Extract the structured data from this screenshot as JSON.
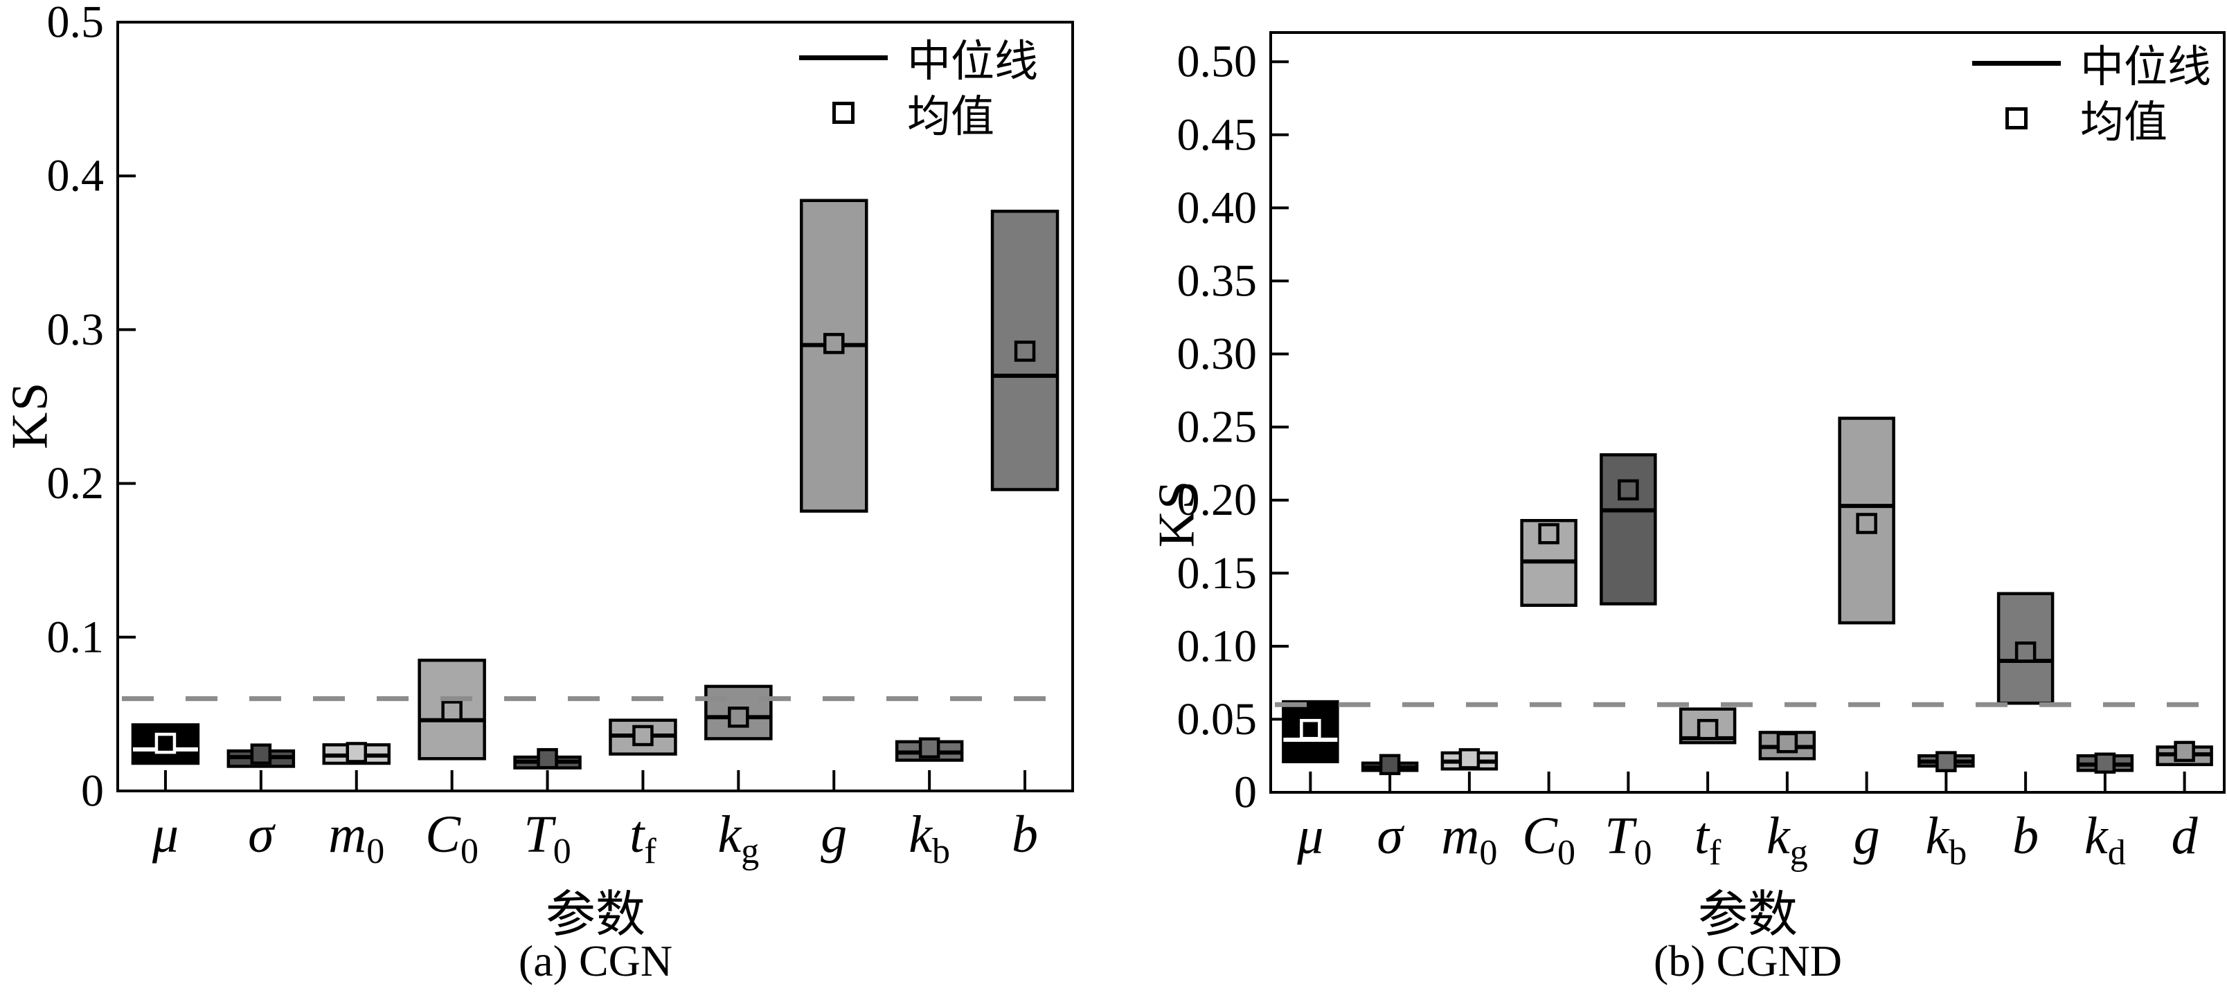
{
  "figure": {
    "y_axis_label": "KS",
    "x_axis_label": "参数",
    "legend": {
      "median_label": "中位线",
      "mean_label": "均值"
    },
    "panel_a_caption": "(a) CGN",
    "panel_b_caption": "(b) CGND"
  },
  "chart_data": [
    {
      "type": "box",
      "title": "(a) CGN",
      "xlabel": "参数",
      "ylabel": "KS",
      "ylim": [
        0,
        0.5
      ],
      "grid": false,
      "legend_position": "top-right-inside",
      "ytick_labels": [
        "0",
        "0.1",
        "0.2",
        "0.3",
        "0.4",
        "0.5"
      ],
      "ytick_values": [
        0,
        0.1,
        0.2,
        0.3,
        0.4,
        0.5
      ],
      "threshold_line": {
        "value": 0.06,
        "style": "dashed",
        "color": "#8c8c8c"
      },
      "categories": [
        {
          "main": "μ",
          "sub": ""
        },
        {
          "main": "σ",
          "sub": ""
        },
        {
          "main": "m",
          "sub": "0"
        },
        {
          "main": "C",
          "sub": "0"
        },
        {
          "main": "T",
          "sub": "0"
        },
        {
          "main": "t",
          "sub": "f"
        },
        {
          "main": "k",
          "sub": "g"
        },
        {
          "main": "g",
          "sub": ""
        },
        {
          "main": "k",
          "sub": "b"
        },
        {
          "main": "b",
          "sub": ""
        }
      ],
      "boxes": [
        {
          "category": "mu",
          "q1": 0.018,
          "median": 0.027,
          "q3": 0.043,
          "mean": 0.031,
          "fill": "#000000",
          "accent": "#ffffff"
        },
        {
          "category": "sigma",
          "q1": 0.016,
          "median": 0.022,
          "q3": 0.026,
          "mean": 0.024,
          "fill": "#4f4f4f",
          "accent": "#000000"
        },
        {
          "category": "m0",
          "q1": 0.018,
          "median": 0.023,
          "q3": 0.03,
          "mean": 0.025,
          "fill": "#c9c9c9",
          "accent": "#000000"
        },
        {
          "category": "C0",
          "q1": 0.021,
          "median": 0.046,
          "q3": 0.085,
          "mean": 0.052,
          "fill": "#a8a8a8",
          "accent": "#000000"
        },
        {
          "category": "T0",
          "q1": 0.015,
          "median": 0.019,
          "q3": 0.022,
          "mean": 0.021,
          "fill": "#575757",
          "accent": "#000000"
        },
        {
          "category": "tf",
          "q1": 0.024,
          "median": 0.036,
          "q3": 0.046,
          "mean": 0.036,
          "fill": "#a9a9a9",
          "accent": "#000000"
        },
        {
          "category": "kg",
          "q1": 0.034,
          "median": 0.048,
          "q3": 0.068,
          "mean": 0.048,
          "fill": "#8f8f8f",
          "accent": "#000000"
        },
        {
          "category": "g",
          "q1": 0.182,
          "median": 0.29,
          "q3": 0.384,
          "mean": 0.291,
          "fill": "#9c9c9c",
          "accent": "#000000"
        },
        {
          "category": "kb",
          "q1": 0.02,
          "median": 0.025,
          "q3": 0.032,
          "mean": 0.028,
          "fill": "#707070",
          "accent": "#000000"
        },
        {
          "category": "b",
          "q1": 0.196,
          "median": 0.27,
          "q3": 0.377,
          "mean": 0.286,
          "fill": "#7b7b7b",
          "accent": "#000000"
        }
      ]
    },
    {
      "type": "box",
      "title": "(b) CGND",
      "xlabel": "参数",
      "ylabel": "KS",
      "ylim": [
        0,
        0.52
      ],
      "grid": false,
      "legend_position": "top-right-inside",
      "ytick_labels": [
        "0",
        "0.05",
        "0.10",
        "0.15",
        "0.20",
        "0.25",
        "0.30",
        "0.35",
        "0.40",
        "0.45",
        "0.50"
      ],
      "ytick_values": [
        0,
        0.05,
        0.1,
        0.15,
        0.2,
        0.25,
        0.3,
        0.35,
        0.4,
        0.45,
        0.5
      ],
      "threshold_line": {
        "value": 0.06,
        "style": "dashed",
        "color": "#8c8c8c"
      },
      "categories": [
        {
          "main": "μ",
          "sub": ""
        },
        {
          "main": "σ",
          "sub": ""
        },
        {
          "main": "m",
          "sub": "0"
        },
        {
          "main": "C",
          "sub": "0"
        },
        {
          "main": "T",
          "sub": "0"
        },
        {
          "main": "t",
          "sub": "f"
        },
        {
          "main": "k",
          "sub": "g"
        },
        {
          "main": "g",
          "sub": ""
        },
        {
          "main": "k",
          "sub": "b"
        },
        {
          "main": "b",
          "sub": ""
        },
        {
          "main": "k",
          "sub": "d"
        },
        {
          "main": "d",
          "sub": ""
        }
      ],
      "boxes": [
        {
          "category": "mu",
          "q1": 0.021,
          "median": 0.036,
          "q3": 0.062,
          "mean": 0.043,
          "fill": "#000000",
          "accent": "#ffffff"
        },
        {
          "category": "sigma",
          "q1": 0.015,
          "median": 0.017,
          "q3": 0.02,
          "mean": 0.019,
          "fill": "#4f4f4f",
          "accent": "#000000"
        },
        {
          "category": "m0",
          "q1": 0.016,
          "median": 0.021,
          "q3": 0.027,
          "mean": 0.023,
          "fill": "#c9c9c9",
          "accent": "#000000"
        },
        {
          "category": "C0",
          "q1": 0.128,
          "median": 0.158,
          "q3": 0.186,
          "mean": 0.177,
          "fill": "#ababab",
          "accent": "#000000"
        },
        {
          "category": "T0",
          "q1": 0.129,
          "median": 0.193,
          "q3": 0.231,
          "mean": 0.207,
          "fill": "#5e5e5e",
          "accent": "#000000"
        },
        {
          "category": "tf",
          "q1": 0.034,
          "median": 0.037,
          "q3": 0.057,
          "mean": 0.043,
          "fill": "#a9a9a9",
          "accent": "#000000"
        },
        {
          "category": "kg",
          "q1": 0.023,
          "median": 0.031,
          "q3": 0.041,
          "mean": 0.034,
          "fill": "#989898",
          "accent": "#000000"
        },
        {
          "category": "g",
          "q1": 0.116,
          "median": 0.196,
          "q3": 0.256,
          "mean": 0.184,
          "fill": "#a2a2a2",
          "accent": "#000000"
        },
        {
          "category": "kb",
          "q1": 0.018,
          "median": 0.021,
          "q3": 0.025,
          "mean": 0.021,
          "fill": "#707070",
          "accent": "#000000"
        },
        {
          "category": "b",
          "q1": 0.061,
          "median": 0.09,
          "q3": 0.136,
          "mean": 0.096,
          "fill": "#7b7b7b",
          "accent": "#000000"
        },
        {
          "category": "kd",
          "q1": 0.015,
          "median": 0.019,
          "q3": 0.025,
          "mean": 0.02,
          "fill": "#676767",
          "accent": "#000000"
        },
        {
          "category": "d",
          "q1": 0.019,
          "median": 0.026,
          "q3": 0.031,
          "mean": 0.028,
          "fill": "#9a9a9a",
          "accent": "#000000"
        }
      ]
    }
  ]
}
